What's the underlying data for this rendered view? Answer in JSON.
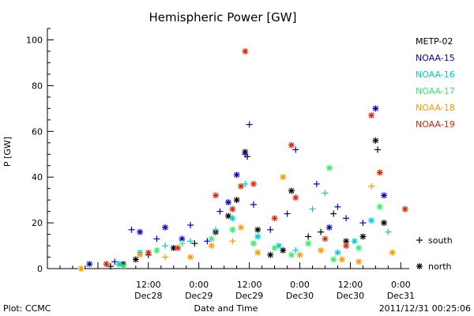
{
  "chart_data": {
    "type": "scatter",
    "title": "Hemispheric Power [GW]",
    "ylabel": "P [GW]",
    "xlabel": "Date and Time",
    "ylim": [
      0,
      105
    ],
    "xlim": [
      "2011-12-27 12:00",
      "2011-12-31 02:00"
    ],
    "yticks": [
      0,
      20,
      40,
      60,
      80,
      100
    ],
    "xticks": [
      {
        "time": "2011-12-28 12:00",
        "line1": "12:00",
        "line2": "Dec28"
      },
      {
        "time": "2011-12-29 00:00",
        "line1": "0:00",
        "line2": "Dec29"
      },
      {
        "time": "2011-12-29 12:00",
        "line1": "12:00",
        "line2": "Dec29"
      },
      {
        "time": "2011-12-30 00:00",
        "line1": "0:00",
        "line2": "Dec30"
      },
      {
        "time": "2011-12-30 12:00",
        "line1": "12:00",
        "line2": "Dec30"
      },
      {
        "time": "2011-12-31 00:00",
        "line1": "0:00",
        "line2": "Dec31"
      }
    ],
    "legend": [
      "METP-02",
      "NOAA-15",
      "NOAA-16",
      "NOAA-17",
      "NOAA-18",
      "NOAA-19"
    ],
    "legend_placement": "right",
    "colors": {
      "METP-02": "#000000",
      "NOAA-15": "#0000cc",
      "NOAA-16": "#00cccc",
      "NOAA-17": "#33ee66",
      "NOAA-18": "#ff9900",
      "NOAA-19": "#dd2200"
    },
    "marker_key": [
      {
        "symbol": "+",
        "label": "south"
      },
      {
        "symbol": "*",
        "label": "north"
      }
    ],
    "series": [
      {
        "name": "METP-02",
        "points": [
          [
            "2011-12-28 03:00",
            1,
            "+"
          ],
          [
            "2011-12-28 06:00",
            2,
            "*"
          ],
          [
            "2011-12-28 09:00",
            4,
            "*"
          ],
          [
            "2011-12-28 12:00",
            6,
            "+"
          ],
          [
            "2011-12-28 18:00",
            9,
            "*"
          ],
          [
            "2011-12-28 23:00",
            11,
            "+"
          ],
          [
            "2011-12-29 04:00",
            16,
            "*"
          ],
          [
            "2011-12-29 07:00",
            23,
            "*"
          ],
          [
            "2011-12-29 09:00",
            30,
            "*"
          ],
          [
            "2011-12-29 11:00",
            51,
            "*"
          ],
          [
            "2011-12-29 11:30",
            49,
            "+"
          ],
          [
            "2011-12-29 14:00",
            17,
            "*"
          ],
          [
            "2011-12-29 17:00",
            6,
            "*"
          ],
          [
            "2011-12-29 20:00",
            8,
            "*"
          ],
          [
            "2011-12-29 22:00",
            34,
            "*"
          ],
          [
            "2011-12-30 02:00",
            14,
            "+"
          ],
          [
            "2011-12-30 05:00",
            16,
            "+"
          ],
          [
            "2011-12-30 08:00",
            24,
            "+"
          ],
          [
            "2011-12-30 11:00",
            12,
            "*"
          ],
          [
            "2011-12-30 15:00",
            14,
            "*"
          ],
          [
            "2011-12-30 18:00",
            56,
            "*"
          ],
          [
            "2011-12-30 18:30",
            52,
            "+"
          ],
          [
            "2011-12-30 20:00",
            20,
            "*"
          ]
        ]
      },
      {
        "name": "NOAA-15",
        "points": [
          [
            "2011-12-27 22:00",
            2,
            "*"
          ],
          [
            "2011-12-28 04:00",
            3,
            "+"
          ],
          [
            "2011-12-28 08:00",
            17,
            "+"
          ],
          [
            "2011-12-28 10:00",
            16,
            "*"
          ],
          [
            "2011-12-28 14:00",
            13,
            "+"
          ],
          [
            "2011-12-28 16:00",
            18,
            "*"
          ],
          [
            "2011-12-28 20:00",
            13,
            "*"
          ],
          [
            "2011-12-28 22:00",
            19,
            "+"
          ],
          [
            "2011-12-29 02:00",
            12,
            "+"
          ],
          [
            "2011-12-29 05:00",
            25,
            "+"
          ],
          [
            "2011-12-29 07:00",
            29,
            "*"
          ],
          [
            "2011-12-29 09:00",
            41,
            "*"
          ],
          [
            "2011-12-29 11:00",
            50,
            "+"
          ],
          [
            "2011-12-29 12:00",
            63,
            "+"
          ],
          [
            "2011-12-29 13:00",
            28,
            "+"
          ],
          [
            "2011-12-29 17:00",
            17,
            "+"
          ],
          [
            "2011-12-29 21:00",
            24,
            "+"
          ],
          [
            "2011-12-29 23:00",
            52,
            "+"
          ],
          [
            "2011-12-30 04:00",
            37,
            "+"
          ],
          [
            "2011-12-30 07:00",
            18,
            "*"
          ],
          [
            "2011-12-30 09:00",
            27,
            "+"
          ],
          [
            "2011-12-30 11:00",
            22,
            "+"
          ],
          [
            "2011-12-30 15:00",
            20,
            "+"
          ],
          [
            "2011-12-30 18:00",
            70,
            "*"
          ],
          [
            "2011-12-30 20:00",
            32,
            "*"
          ]
        ]
      },
      {
        "name": "NOAA-16",
        "points": [
          [
            "2011-12-28 05:00",
            2,
            "*"
          ],
          [
            "2011-12-28 10:00",
            7,
            "*"
          ],
          [
            "2011-12-28 16:00",
            10,
            "+"
          ],
          [
            "2011-12-28 22:00",
            12,
            "+"
          ],
          [
            "2011-12-29 04:00",
            17,
            "+"
          ],
          [
            "2011-12-29 08:00",
            22,
            "*"
          ],
          [
            "2011-12-29 11:00",
            37,
            "+"
          ],
          [
            "2011-12-29 14:00",
            14,
            "*"
          ],
          [
            "2011-12-29 19:00",
            10,
            "*"
          ],
          [
            "2011-12-29 23:00",
            8,
            "+"
          ],
          [
            "2011-12-30 03:00",
            26,
            "+"
          ],
          [
            "2011-12-30 06:00",
            33,
            "+"
          ],
          [
            "2011-12-30 09:00",
            7,
            "*"
          ],
          [
            "2011-12-30 13:00",
            12,
            "*"
          ],
          [
            "2011-12-30 17:00",
            21,
            "*"
          ],
          [
            "2011-12-30 21:00",
            16,
            "+"
          ]
        ]
      },
      {
        "name": "NOAA-17",
        "points": [
          [
            "2011-12-28 06:00",
            1,
            "*"
          ],
          [
            "2011-12-28 14:00",
            8,
            "*"
          ],
          [
            "2011-12-28 20:00",
            11,
            "+"
          ],
          [
            "2011-12-29 03:00",
            13,
            "*"
          ],
          [
            "2011-12-29 08:00",
            17,
            "*"
          ],
          [
            "2011-12-29 13:00",
            11,
            "*"
          ],
          [
            "2011-12-29 18:00",
            9,
            "*"
          ],
          [
            "2011-12-29 22:00",
            6,
            "*"
          ],
          [
            "2011-12-30 02:00",
            11,
            "*"
          ],
          [
            "2011-12-30 07:00",
            44,
            "*"
          ],
          [
            "2011-12-30 08:00",
            4,
            "*"
          ],
          [
            "2011-12-30 14:00",
            9,
            "*"
          ],
          [
            "2011-12-30 19:00",
            27,
            "*"
          ]
        ]
      },
      {
        "name": "NOAA-18",
        "points": [
          [
            "2011-12-27 20:00",
            0,
            "*"
          ],
          [
            "2011-12-28 10:00",
            6,
            "*"
          ],
          [
            "2011-12-28 16:00",
            5,
            "+"
          ],
          [
            "2011-12-28 22:00",
            5,
            "*"
          ],
          [
            "2011-12-29 03:00",
            10,
            "*"
          ],
          [
            "2011-12-29 08:00",
            12,
            "+"
          ],
          [
            "2011-12-29 10:00",
            18,
            "*"
          ],
          [
            "2011-12-29 14:00",
            7,
            "*"
          ],
          [
            "2011-12-29 20:00",
            40,
            "*"
          ],
          [
            "2011-12-30 00:00",
            6,
            "*"
          ],
          [
            "2011-12-30 05:00",
            8,
            "*"
          ],
          [
            "2011-12-30 10:00",
            4,
            "*"
          ],
          [
            "2011-12-30 14:00",
            3,
            "*"
          ],
          [
            "2011-12-30 17:00",
            36,
            "+"
          ],
          [
            "2011-12-30 22:00",
            7,
            "*"
          ]
        ]
      },
      {
        "name": "NOAA-19",
        "points": [
          [
            "2011-12-28 02:00",
            2,
            "*"
          ],
          [
            "2011-12-28 12:00",
            7,
            "*"
          ],
          [
            "2011-12-28 19:00",
            9,
            "*"
          ],
          [
            "2011-12-29 04:00",
            32,
            "*"
          ],
          [
            "2011-12-29 08:00",
            26,
            "*"
          ],
          [
            "2011-12-29 10:00",
            36,
            "*"
          ],
          [
            "2011-12-29 11:00",
            95,
            "*"
          ],
          [
            "2011-12-29 13:00",
            37,
            "*"
          ],
          [
            "2011-12-29 18:00",
            22,
            "*"
          ],
          [
            "2011-12-29 22:00",
            54,
            "*"
          ],
          [
            "2011-12-29 23:00",
            31,
            "*"
          ],
          [
            "2011-12-30 06:00",
            13,
            "*"
          ],
          [
            "2011-12-30 11:00",
            10,
            "*"
          ],
          [
            "2011-12-30 17:00",
            67,
            "*"
          ],
          [
            "2011-12-30 19:00",
            42,
            "*"
          ],
          [
            "2011-12-31 01:00",
            26,
            "*"
          ]
        ]
      }
    ]
  },
  "footer": {
    "plot_credit": "Plot: CCMC",
    "timestamp": "2011/12/31 00:25:06"
  }
}
